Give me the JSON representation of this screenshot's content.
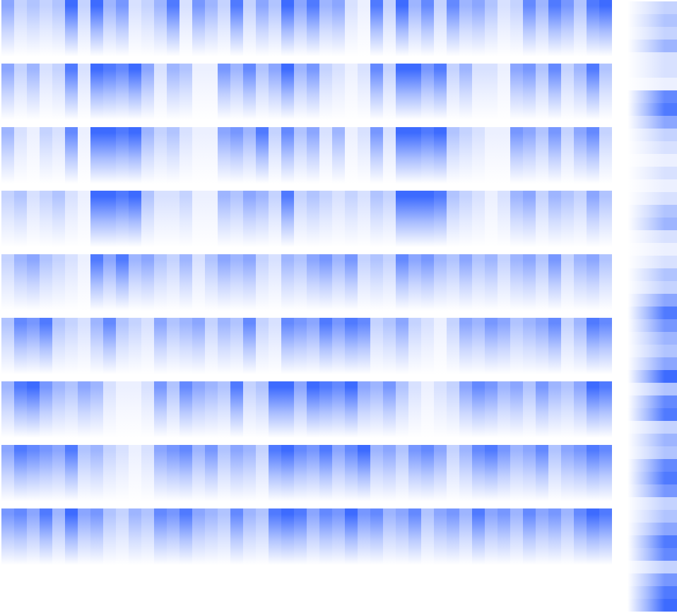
{
  "chart_data": {
    "type": "heatmap",
    "tick_labels": false,
    "color": "#3d6bff",
    "color_range": [
      0,
      1
    ],
    "strips": [
      [
        0.6,
        0.3,
        0.4,
        0.3,
        0.4,
        1,
        0.3,
        1,
        0.5,
        0.7,
        0.2,
        0.3,
        0.5,
        0.9,
        0.2,
        0.7,
        0.5,
        0.3,
        0.9,
        0.3,
        0.6,
        0.4,
        1,
        0.6,
        0.9,
        0.5,
        0.6,
        0.2,
        0.1,
        0.9,
        0.3,
        1,
        0.5,
        0.8,
        0.3,
        0.8,
        0.5,
        0.6,
        0.4,
        0.2,
        0.3,
        0.8,
        0.5,
        0.9,
        0.7,
        0.4,
        0.9,
        1
      ],
      [
        0.6,
        0.3,
        0.5,
        0.2,
        0.3,
        0.9,
        0.2,
        1,
        0.9,
        0.8,
        1,
        0.6,
        0.2,
        0.5,
        0.4,
        0.1,
        0.1,
        0.7,
        0.5,
        0.8,
        0.4,
        0.6,
        1,
        0.5,
        0.7,
        0.3,
        0.2,
        0.1,
        0.2,
        0.8,
        0.3,
        1,
        1,
        0.7,
        0.9,
        0.3,
        0.5,
        0.2,
        0.2,
        0.1,
        0.6,
        0.7,
        0.4,
        0.8,
        0.3,
        0.5,
        0.9,
        0.4
      ],
      [
        0.5,
        0.2,
        0.1,
        0.3,
        0.2,
        0.8,
        0.1,
        1,
        1,
        0.9,
        1,
        0.5,
        0.3,
        0.4,
        0.2,
        0.1,
        0.1,
        0.6,
        0.7,
        0.5,
        0.9,
        0.3,
        0.8,
        0.4,
        0.6,
        0.2,
        0.5,
        0.1,
        0.2,
        0.7,
        0.2,
        1,
        1,
        0.9,
        1,
        0.4,
        0.3,
        0.2,
        0.1,
        0.1,
        0.7,
        0.6,
        0.4,
        0.7,
        0.3,
        0.6,
        0.8,
        0.3
      ],
      [
        0.3,
        0.4,
        0.2,
        0.3,
        0.4,
        0.2,
        0.1,
        1,
        1,
        0.9,
        1,
        0.4,
        0.2,
        0.2,
        0.3,
        0.1,
        0.1,
        0.5,
        0.4,
        0.6,
        0.5,
        0.3,
        0.9,
        0.3,
        0.4,
        0.3,
        0.2,
        0.3,
        0.2,
        0.4,
        0.3,
        1,
        1,
        1,
        0.9,
        0.4,
        0.3,
        0.2,
        0.1,
        0.2,
        0.5,
        0.6,
        0.3,
        0.5,
        0.4,
        0.3,
        0.6,
        0.4
      ],
      [
        0.3,
        0.5,
        0.6,
        0.4,
        0.3,
        0.2,
        0.1,
        0.9,
        0.6,
        0.9,
        0.5,
        0.6,
        0.4,
        0.3,
        0.5,
        0.2,
        0.4,
        0.6,
        0.5,
        0.6,
        0.3,
        0.2,
        0.5,
        0.4,
        0.6,
        0.7,
        0.5,
        0.7,
        0.3,
        0.4,
        0.3,
        0.8,
        0.6,
        0.7,
        0.5,
        0.4,
        0.6,
        0.4,
        0.5,
        0.3,
        0.5,
        0.6,
        0.4,
        0.7,
        0.3,
        0.5,
        0.6,
        0.4
      ],
      [
        0.4,
        0.8,
        0.7,
        0.9,
        0.4,
        0.3,
        0.2,
        0.5,
        0.8,
        0.4,
        0.3,
        0.2,
        0.6,
        0.4,
        0.5,
        0.6,
        0.3,
        0.5,
        0.4,
        0.8,
        0.3,
        0.2,
        0.8,
        0.7,
        0.6,
        0.9,
        0.7,
        0.9,
        0.8,
        0.3,
        0.4,
        0.6,
        0.3,
        0.2,
        0.1,
        0.3,
        0.6,
        0.5,
        0.7,
        0.6,
        0.4,
        0.5,
        0.6,
        0.8,
        0.3,
        0.5,
        0.9,
        0.8
      ],
      [
        0.5,
        0.9,
        1,
        0.7,
        0.5,
        0.4,
        0.6,
        0.5,
        0.2,
        0.1,
        0.1,
        0.2,
        0.7,
        0.4,
        0.8,
        0.6,
        0.5,
        0.4,
        0.9,
        0.3,
        0.4,
        1,
        1,
        0.6,
        1,
        0.9,
        0.8,
        1,
        0.6,
        0.5,
        0.7,
        0.4,
        0.2,
        0.1,
        0.2,
        0.3,
        0.6,
        0.8,
        0.7,
        0.5,
        0.6,
        0.4,
        0.7,
        0.5,
        0.4,
        0.6,
        1,
        0.9
      ],
      [
        0.6,
        0.9,
        0.8,
        0.7,
        0.6,
        0.9,
        0.4,
        0.5,
        0.3,
        0.2,
        0.1,
        0.2,
        0.6,
        0.7,
        0.8,
        0.5,
        0.7,
        0.4,
        0.6,
        0.5,
        0.3,
        0.9,
        1,
        0.8,
        0.7,
        0.9,
        0.6,
        0.8,
        1,
        0.5,
        0.6,
        0.4,
        0.7,
        0.8,
        0.6,
        0.3,
        0.5,
        0.8,
        0.9,
        0.7,
        0.5,
        0.6,
        0.8,
        0.4,
        0.6,
        0.7,
        0.9,
        0.8
      ],
      [
        0.7,
        0.8,
        0.6,
        0.9,
        0.5,
        1,
        0.6,
        0.7,
        0.4,
        0.3,
        0.5,
        0.4,
        0.8,
        0.7,
        0.9,
        0.6,
        0.5,
        0.4,
        0.8,
        0.5,
        0.4,
        0.9,
        1,
        0.9,
        0.6,
        0.8,
        0.7,
        1,
        0.7,
        0.8,
        0.5,
        0.6,
        0.8,
        0.4,
        0.6,
        0.7,
        0.5,
        0.9,
        0.6,
        0.7,
        0.5,
        0.8,
        0.6,
        0.7,
        0.5,
        0.8,
        1,
        0.9
      ]
    ],
    "side": [
      0.3,
      0.4,
      0.3,
      0.5,
      0.2,
      0.2,
      0.1,
      0.8,
      0.9,
      0.6,
      0.3,
      0.2,
      0.1,
      0.2,
      0.1,
      0.2,
      0.4,
      0.5,
      0.2,
      0.1,
      0.2,
      0.4,
      0.3,
      0.6,
      0.9,
      0.7,
      0.5,
      0.4,
      0.6,
      1,
      0.4,
      0.8,
      0.9,
      0.3,
      0.5,
      0.4,
      0.8,
      0.9,
      0.7,
      0.3,
      0.4,
      0.6,
      0.9,
      0.8,
      0.3,
      0.7,
      0.9,
      1
    ]
  }
}
